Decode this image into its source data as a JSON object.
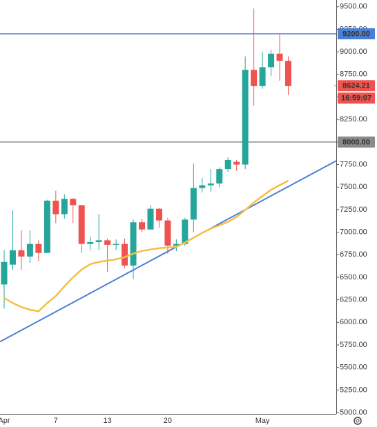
{
  "chart_data": {
    "type": "candlestick",
    "categories": [
      "Apr",
      null,
      null,
      null,
      null,
      null,
      "7",
      null,
      null,
      null,
      null,
      null,
      "13",
      null,
      null,
      null,
      null,
      null,
      null,
      "20",
      null,
      null,
      null,
      null,
      null,
      null,
      null,
      null,
      null,
      null,
      "May",
      null,
      null,
      null
    ],
    "open": [
      6420,
      6640,
      6800,
      6730,
      6870,
      6770,
      7350,
      7200,
      7370,
      7300,
      6870,
      6890,
      6910,
      6860,
      6870,
      6630,
      7110,
      7030,
      7260,
      7130,
      6850,
      6870,
      7140,
      7490,
      7520,
      7540,
      7700,
      7780,
      7750,
      8800,
      8620,
      8830,
      8980,
      8900
    ],
    "high": [
      6800,
      7240,
      7020,
      7020,
      6910,
      7360,
      7460,
      7420,
      7380,
      7300,
      6950,
      7200,
      6930,
      6920,
      6930,
      7140,
      7150,
      7300,
      7270,
      7160,
      6920,
      7160,
      7760,
      7600,
      7700,
      7720,
      7830,
      7800,
      8950,
      9480,
      9000,
      9020,
      9200,
      8950
    ],
    "low": [
      6150,
      6580,
      6580,
      6660,
      6680,
      6770,
      7100,
      7150,
      7100,
      6770,
      6800,
      6800,
      6560,
      6800,
      6600,
      6480,
      7000,
      7030,
      7050,
      6760,
      6790,
      6850,
      7000,
      7440,
      7450,
      7500,
      7670,
      7680,
      7700,
      8400,
      8590,
      8730,
      8680,
      8520
    ],
    "close": [
      6670,
      6800,
      6730,
      6870,
      6770,
      7350,
      7200,
      7370,
      7300,
      6870,
      6890,
      6910,
      6860,
      6870,
      6630,
      7110,
      7030,
      7260,
      7130,
      6850,
      6870,
      7140,
      7490,
      7520,
      7540,
      7700,
      7800,
      7750,
      8800,
      8620,
      8830,
      8980,
      8900,
      8620
    ],
    "up_color": "#26a69a",
    "down_color": "#ef5350",
    "moving_average": {
      "color": "#f5bf42",
      "values": [
        6270,
        6215,
        6170,
        6140,
        6123,
        6215,
        6292,
        6400,
        6500,
        6585,
        6646,
        6670,
        6685,
        6700,
        6723,
        6762,
        6792,
        6808,
        6823,
        6830,
        6838,
        6885,
        6938,
        6992,
        7040,
        7077,
        7115,
        7170,
        7246,
        7330,
        7400,
        7470,
        7523,
        7570
      ]
    },
    "trend_line": {
      "color": "#4a7fd6",
      "values": [
        5785,
        7792
      ]
    },
    "levels": [
      {
        "value": 9200,
        "label": "9200.00",
        "color": "#4a7fd6"
      },
      {
        "value": 8000,
        "label": "8000.00",
        "color": "#8a8a8a"
      }
    ],
    "last_price": {
      "value": 8624.21,
      "label": "8624.21",
      "countdown": "16:59:07",
      "color": "#ef5350"
    },
    "ylim": [
      4985,
      9575
    ],
    "yticks": [
      {
        "value": 5000,
        "label": "5000.00"
      },
      {
        "value": 5250,
        "label": "5250.00"
      },
      {
        "value": 5500,
        "label": "5500.00"
      },
      {
        "value": 5750,
        "label": "5750.00"
      },
      {
        "value": 6000,
        "label": "6000.00"
      },
      {
        "value": 6250,
        "label": "6250.00"
      },
      {
        "value": 6500,
        "label": "6500.00"
      },
      {
        "value": 6750,
        "label": "6750.00"
      },
      {
        "value": 7000,
        "label": "7000.00"
      },
      {
        "value": 7250,
        "label": "7250.00"
      },
      {
        "value": 7500,
        "label": "7500.00"
      },
      {
        "value": 7750,
        "label": "7750.00"
      },
      {
        "value": 8000,
        "label": "8000.00"
      },
      {
        "value": 8250,
        "label": "8250.00"
      },
      {
        "value": 8500,
        "label": "8500.00"
      },
      {
        "value": 8750,
        "label": "8750.00"
      },
      {
        "value": 9000,
        "label": "9000.00"
      },
      {
        "value": 9250,
        "label": "9250.00"
      },
      {
        "value": 9500,
        "label": "9500.00"
      }
    ]
  }
}
